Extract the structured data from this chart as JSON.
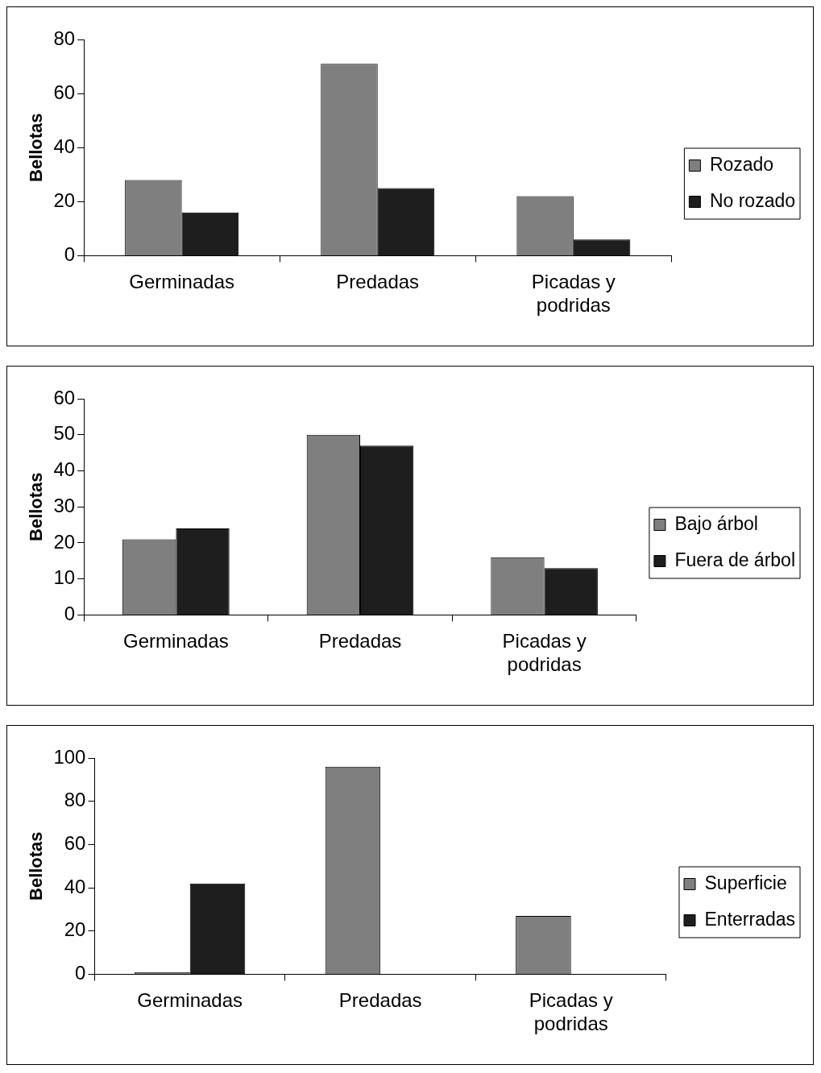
{
  "chart_data": [
    {
      "type": "bar",
      "ylabel": "Bellotas",
      "categories": [
        "Germinadas",
        "Predadas",
        "Picadas y podridas"
      ],
      "series": [
        {
          "name": "Rozado",
          "color": "#7f7f7f",
          "values": [
            28,
            71,
            22
          ]
        },
        {
          "name": "No rozado",
          "color": "#1e1e1e",
          "values": [
            16,
            25,
            6
          ]
        }
      ],
      "ylim": [
        0,
        80
      ],
      "yticks": [
        0,
        20,
        40,
        60,
        80
      ],
      "grid": false,
      "legend": "right"
    },
    {
      "type": "bar",
      "ylabel": "Bellotas",
      "categories": [
        "Germinadas",
        "Predadas",
        "Picadas y podridas"
      ],
      "series": [
        {
          "name": "Bajo árbol",
          "color": "#7f7f7f",
          "values": [
            21,
            50,
            16
          ]
        },
        {
          "name": "Fuera de árbol",
          "color": "#1e1e1e",
          "values": [
            24,
            47,
            13
          ]
        }
      ],
      "ylim": [
        0,
        60
      ],
      "yticks": [
        0,
        10,
        20,
        30,
        40,
        50,
        60
      ],
      "grid": false,
      "legend": "right"
    },
    {
      "type": "bar",
      "ylabel": "Bellotas",
      "categories": [
        "Germinadas",
        "Predadas",
        "Picadas y podridas"
      ],
      "series": [
        {
          "name": "Superficie",
          "color": "#7f7f7f",
          "values": [
            1,
            96,
            27
          ]
        },
        {
          "name": "Enterradas",
          "color": "#1e1e1e",
          "values": [
            42,
            0,
            0
          ]
        }
      ],
      "ylim": [
        0,
        100
      ],
      "yticks": [
        0,
        20,
        40,
        60,
        80,
        100
      ],
      "grid": false,
      "legend": "right"
    }
  ]
}
